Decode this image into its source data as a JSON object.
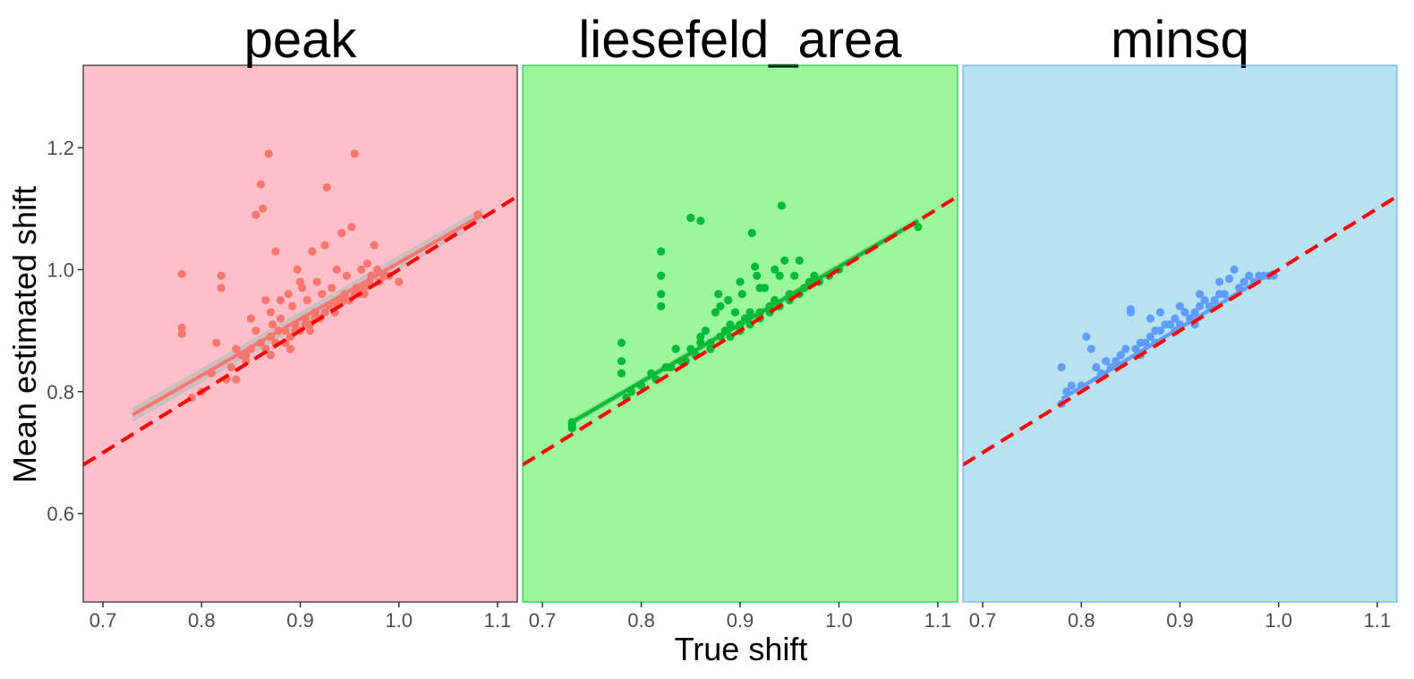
{
  "chart_data": {
    "type": "scatter",
    "xlabel": "True shift",
    "ylabel": "Mean estimated shift",
    "xlim": [
      0.68,
      1.12
    ],
    "ylim": [
      0.455,
      1.335
    ],
    "xticks": [
      "0.7",
      "0.8",
      "0.9",
      "1.0",
      "1.1"
    ],
    "xtick_values": [
      0.7,
      0.8,
      0.9,
      1.0,
      1.1
    ],
    "yticks": [
      "0.6",
      "0.8",
      "1.0",
      "1.2"
    ],
    "ytick_values": [
      0.6,
      0.8,
      1.0,
      1.2
    ],
    "grid": false,
    "reference_line": {
      "style": "dashed",
      "color": "#ff0000",
      "x": [
        0.68,
        1.12
      ],
      "y": [
        0.68,
        1.12
      ]
    },
    "panels": [
      {
        "title": "peak",
        "background": "#ffbfc9",
        "border": "#000000",
        "point_color": "#f8766d",
        "fit_color": "#f8766d",
        "band_color": "#bdbdbd",
        "fit": {
          "x": [
            0.73,
            1.085
          ],
          "y": [
            0.762,
            1.09
          ],
          "se_halfwidth": 0.012
        },
        "points": [
          [
            0.78,
            0.993
          ],
          [
            0.78,
            0.905
          ],
          [
            0.78,
            0.895
          ],
          [
            0.79,
            0.79
          ],
          [
            0.8,
            0.8
          ],
          [
            0.81,
            0.83
          ],
          [
            0.815,
            0.88
          ],
          [
            0.82,
            0.99
          ],
          [
            0.82,
            0.97
          ],
          [
            0.825,
            0.82
          ],
          [
            0.83,
            0.84
          ],
          [
            0.835,
            0.87
          ],
          [
            0.84,
            0.86
          ],
          [
            0.845,
            0.85
          ],
          [
            0.85,
            0.87
          ],
          [
            0.85,
            0.92
          ],
          [
            0.855,
            0.9
          ],
          [
            0.855,
            1.09
          ],
          [
            0.86,
            1.14
          ],
          [
            0.862,
            1.1
          ],
          [
            0.865,
            0.95
          ],
          [
            0.868,
            1.19
          ],
          [
            0.87,
            0.89
          ],
          [
            0.87,
            0.93
          ],
          [
            0.872,
            0.91
          ],
          [
            0.875,
            1.03
          ],
          [
            0.878,
            0.9
          ],
          [
            0.88,
            0.92
          ],
          [
            0.885,
            0.88
          ],
          [
            0.888,
            0.96
          ],
          [
            0.89,
            0.89
          ],
          [
            0.892,
            0.94
          ],
          [
            0.895,
            0.91
          ],
          [
            0.897,
            1.0
          ],
          [
            0.9,
            0.9
          ],
          [
            0.902,
            0.97
          ],
          [
            0.905,
            0.92
          ],
          [
            0.907,
            0.95
          ],
          [
            0.91,
            0.91
          ],
          [
            0.912,
            1.03
          ],
          [
            0.915,
            0.93
          ],
          [
            0.917,
            0.98
          ],
          [
            0.92,
            0.92
          ],
          [
            0.922,
            0.96
          ],
          [
            0.925,
            1.04
          ],
          [
            0.927,
            1.135
          ],
          [
            0.93,
            0.94
          ],
          [
            0.932,
            0.97
          ],
          [
            0.935,
            0.93
          ],
          [
            0.937,
            1.0
          ],
          [
            0.94,
            0.95
          ],
          [
            0.942,
            1.06
          ],
          [
            0.945,
            0.96
          ],
          [
            0.947,
            0.99
          ],
          [
            0.95,
            0.95
          ],
          [
            0.952,
            1.07
          ],
          [
            0.955,
            1.19
          ],
          [
            0.957,
            0.97
          ],
          [
            0.96,
            0.96
          ],
          [
            0.962,
            1.0
          ],
          [
            0.965,
            0.97
          ],
          [
            0.968,
            1.01
          ],
          [
            0.97,
            0.98
          ],
          [
            0.972,
            0.99
          ],
          [
            0.975,
            1.04
          ],
          [
            0.978,
            1.0
          ],
          [
            0.98,
            0.98
          ],
          [
            0.985,
            0.99
          ],
          [
            0.99,
            0.99
          ],
          [
            1.0,
            0.98
          ],
          [
            1.08,
            1.09
          ],
          [
            0.835,
            0.82
          ],
          [
            0.845,
            0.86
          ],
          [
            0.865,
            0.87
          ],
          [
            0.875,
            0.88
          ],
          [
            0.885,
            0.9
          ],
          [
            0.895,
            0.9
          ],
          [
            0.905,
            0.91
          ],
          [
            0.915,
            0.92
          ],
          [
            0.925,
            0.93
          ],
          [
            0.935,
            0.94
          ],
          [
            0.945,
            0.95
          ],
          [
            0.955,
            0.96
          ],
          [
            0.965,
            0.96
          ],
          [
            0.88,
            0.95
          ],
          [
            0.9,
            0.98
          ],
          [
            0.86,
            0.88
          ],
          [
            0.87,
            0.86
          ],
          [
            0.89,
            0.87
          ],
          [
            0.91,
            0.9
          ]
        ]
      },
      {
        "title": "liesefeld_area",
        "background": "#9bf79b",
        "border": "#00ba38",
        "point_color": "#00ba38",
        "fit_color": "#00ba38",
        "band_color": "#7fd37f",
        "fit": {
          "x": [
            0.73,
            1.08
          ],
          "y": [
            0.75,
            1.08
          ],
          "se_halfwidth": 0.006
        },
        "points": [
          [
            0.73,
            0.745
          ],
          [
            0.73,
            0.74
          ],
          [
            0.73,
            0.75
          ],
          [
            0.78,
            0.88
          ],
          [
            0.78,
            0.85
          ],
          [
            0.78,
            0.83
          ],
          [
            0.785,
            0.79
          ],
          [
            0.79,
            0.8
          ],
          [
            0.8,
            0.81
          ],
          [
            0.81,
            0.83
          ],
          [
            0.815,
            0.82
          ],
          [
            0.82,
            1.03
          ],
          [
            0.82,
            0.99
          ],
          [
            0.82,
            0.96
          ],
          [
            0.82,
            0.94
          ],
          [
            0.825,
            0.84
          ],
          [
            0.83,
            0.84
          ],
          [
            0.835,
            0.87
          ],
          [
            0.84,
            0.85
          ],
          [
            0.845,
            0.85
          ],
          [
            0.85,
            1.085
          ],
          [
            0.85,
            0.87
          ],
          [
            0.855,
            0.86
          ],
          [
            0.86,
            1.08
          ],
          [
            0.86,
            0.89
          ],
          [
            0.865,
            0.9
          ],
          [
            0.87,
            0.88
          ],
          [
            0.875,
            0.93
          ],
          [
            0.878,
            0.96
          ],
          [
            0.88,
            0.89
          ],
          [
            0.885,
            0.9
          ],
          [
            0.888,
            0.95
          ],
          [
            0.89,
            0.91
          ],
          [
            0.895,
            0.93
          ],
          [
            0.9,
            0.9
          ],
          [
            0.902,
            0.96
          ],
          [
            0.905,
            0.92
          ],
          [
            0.91,
            0.93
          ],
          [
            0.912,
            1.06
          ],
          [
            0.915,
            1.005
          ],
          [
            0.917,
            0.99
          ],
          [
            0.92,
            0.93
          ],
          [
            0.925,
            0.97
          ],
          [
            0.93,
            0.94
          ],
          [
            0.935,
            0.95
          ],
          [
            0.94,
            0.99
          ],
          [
            0.942,
            1.105
          ],
          [
            0.945,
            1.015
          ],
          [
            0.95,
            0.95
          ],
          [
            0.955,
            0.99
          ],
          [
            0.96,
            1.015
          ],
          [
            0.965,
            0.97
          ],
          [
            0.97,
            0.98
          ],
          [
            0.975,
            0.99
          ],
          [
            0.98,
            0.98
          ],
          [
            0.99,
            0.99
          ],
          [
            1.0,
            1.0
          ],
          [
            1.08,
            1.07
          ],
          [
            0.86,
            0.88
          ],
          [
            0.87,
            0.87
          ],
          [
            0.89,
            0.89
          ],
          [
            0.9,
            0.91
          ],
          [
            0.91,
            0.91
          ],
          [
            0.92,
            0.92
          ],
          [
            0.93,
            0.93
          ],
          [
            0.94,
            0.94
          ],
          [
            0.95,
            0.96
          ],
          [
            0.96,
            0.96
          ],
          [
            0.88,
            0.94
          ],
          [
            0.9,
            0.98
          ],
          [
            0.92,
            0.97
          ],
          [
            0.935,
            1.0
          ]
        ]
      },
      {
        "title": "minsq",
        "background": "#b8e2f0",
        "border": "#619cff",
        "point_color": "#619cff",
        "fit_color": "#619cff",
        "band_color": "#9cc3f0",
        "fit": {
          "x": [
            0.78,
            0.995
          ],
          "y": [
            0.788,
            0.997
          ],
          "se_halfwidth": 0.004
        },
        "points": [
          [
            0.78,
            0.84
          ],
          [
            0.78,
            0.78
          ],
          [
            0.785,
            0.8
          ],
          [
            0.79,
            0.81
          ],
          [
            0.8,
            0.81
          ],
          [
            0.805,
            0.89
          ],
          [
            0.81,
            0.87
          ],
          [
            0.815,
            0.84
          ],
          [
            0.82,
            0.83
          ],
          [
            0.825,
            0.85
          ],
          [
            0.83,
            0.84
          ],
          [
            0.835,
            0.85
          ],
          [
            0.84,
            0.86
          ],
          [
            0.845,
            0.87
          ],
          [
            0.85,
            0.935
          ],
          [
            0.85,
            0.93
          ],
          [
            0.855,
            0.87
          ],
          [
            0.86,
            0.88
          ],
          [
            0.865,
            0.88
          ],
          [
            0.87,
            0.89
          ],
          [
            0.875,
            0.9
          ],
          [
            0.88,
            0.9
          ],
          [
            0.885,
            0.91
          ],
          [
            0.89,
            0.91
          ],
          [
            0.895,
            0.92
          ],
          [
            0.9,
            0.91
          ],
          [
            0.905,
            0.93
          ],
          [
            0.91,
            0.92
          ],
          [
            0.915,
            0.93
          ],
          [
            0.92,
            0.94
          ],
          [
            0.925,
            0.95
          ],
          [
            0.93,
            0.94
          ],
          [
            0.935,
            0.95
          ],
          [
            0.94,
            0.96
          ],
          [
            0.945,
            0.96
          ],
          [
            0.95,
            0.985
          ],
          [
            0.955,
            1.0
          ],
          [
            0.96,
            0.97
          ],
          [
            0.965,
            0.98
          ],
          [
            0.97,
            0.99
          ],
          [
            0.975,
            0.98
          ],
          [
            0.98,
            0.99
          ],
          [
            0.985,
            0.99
          ],
          [
            0.99,
            0.99
          ],
          [
            0.995,
            0.99
          ],
          [
            0.87,
            0.92
          ],
          [
            0.88,
            0.93
          ],
          [
            0.9,
            0.94
          ],
          [
            0.92,
            0.96
          ],
          [
            0.94,
            0.98
          ],
          [
            0.86,
            0.86
          ],
          [
            0.875,
            0.88
          ],
          [
            0.895,
            0.9
          ],
          [
            0.915,
            0.91
          ]
        ]
      }
    ]
  }
}
